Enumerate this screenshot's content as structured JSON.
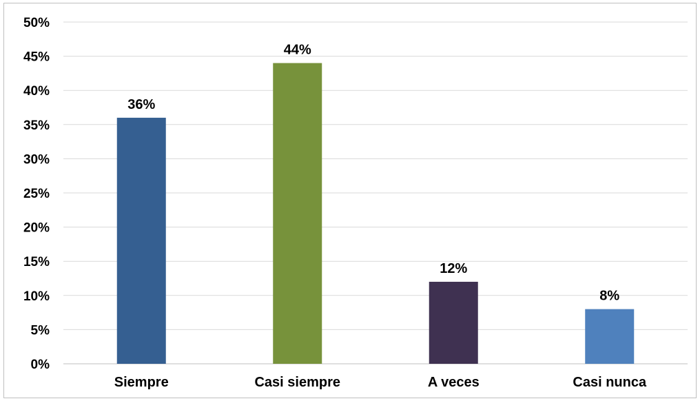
{
  "chart_data": {
    "type": "bar",
    "categories": [
      "Siempre",
      "Casi siempre",
      "A veces",
      "Casi nunca"
    ],
    "values": [
      36,
      44,
      12,
      8
    ],
    "value_labels": [
      "36%",
      "44%",
      "12%",
      "8%"
    ],
    "bar_colors": [
      "#355f91",
      "#77923b",
      "#3f3151",
      "#4f81bd"
    ],
    "ylim": [
      0,
      50
    ],
    "yticks": [
      0,
      5,
      10,
      15,
      20,
      25,
      30,
      35,
      40,
      45,
      50
    ],
    "ytick_labels": [
      "0%",
      "5%",
      "10%",
      "15%",
      "20%",
      "25%",
      "30%",
      "35%",
      "40%",
      "45%",
      "50%"
    ],
    "grid": true,
    "gridline_color": "#d9d9d9",
    "axis_color": "#bfbfbf",
    "legend": "none"
  }
}
